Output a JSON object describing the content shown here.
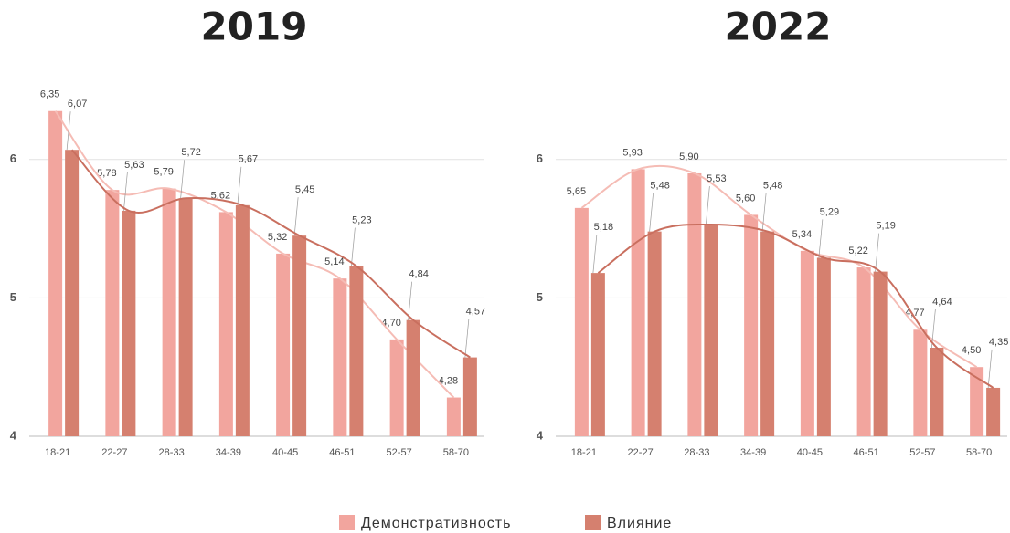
{
  "chart_data": [
    {
      "type": "bar",
      "title": "2019",
      "categories": [
        "18-21",
        "22-27",
        "28-33",
        "34-39",
        "40-45",
        "46-51",
        "52-57",
        "58-70"
      ],
      "series": [
        {
          "name": "Демонстративность",
          "color": "#f2a59e",
          "values": [
            6.35,
            5.78,
            5.79,
            5.62,
            5.32,
            5.14,
            4.7,
            4.28
          ],
          "value_labels": [
            "6,35",
            "5,78",
            "5,79",
            "5,62",
            "5,32",
            "5,14",
            "4,70",
            "4,28"
          ]
        },
        {
          "name": "Влияние",
          "color": "#d5806f",
          "values": [
            6.07,
            5.63,
            5.72,
            5.67,
            5.45,
            5.23,
            4.84,
            4.57
          ],
          "value_labels": [
            "6,07",
            "5,63",
            "5,72",
            "5,67",
            "5,45",
            "5,23",
            "4,84",
            "4,57"
          ]
        }
      ],
      "ylim": [
        4,
        6.5
      ],
      "yticks": [
        4,
        5,
        6
      ],
      "grid": true
    },
    {
      "type": "bar",
      "title": "2022",
      "categories": [
        "18-21",
        "22-27",
        "28-33",
        "34-39",
        "40-45",
        "46-51",
        "52-57",
        "58-70"
      ],
      "series": [
        {
          "name": "Демонстративность",
          "color": "#f2a59e",
          "values": [
            5.65,
            5.93,
            5.9,
            5.6,
            5.34,
            5.22,
            4.77,
            4.5
          ],
          "value_labels": [
            "5,65",
            "5,93",
            "5,90",
            "5,60",
            "5,34",
            "5,22",
            "4,77",
            "4,50"
          ]
        },
        {
          "name": "Влияние",
          "color": "#d5806f",
          "values": [
            5.18,
            5.48,
            5.53,
            5.48,
            5.29,
            5.19,
            4.64,
            4.35
          ],
          "value_labels": [
            "5,18",
            "5,48",
            "5,53",
            "5,48",
            "5,29",
            "5,19",
            "4,64",
            "4,35"
          ]
        }
      ],
      "ylim": [
        4,
        6.5
      ],
      "yticks": [
        4,
        5,
        6
      ],
      "grid": true
    }
  ]
}
